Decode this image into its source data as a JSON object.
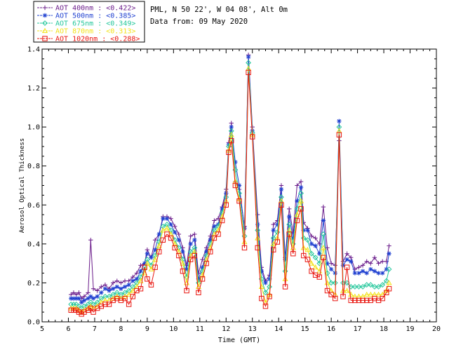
{
  "header": {
    "location": "PML, N 50 22', W 04 08', Alt 0m",
    "date": "Data from: 09 May 2020"
  },
  "chart_data": {
    "type": "line",
    "xlabel": "Time (GMT)",
    "ylabel": "Aerosol Optical Thickness",
    "xlim": [
      5,
      20
    ],
    "ylim": [
      0.0,
      1.4
    ],
    "xticks": [
      "5",
      "6",
      "7",
      "8",
      "9",
      "10",
      "11",
      "12",
      "13",
      "14",
      "15",
      "16",
      "17",
      "18",
      "19",
      "20"
    ],
    "yticks": [
      "0.0",
      "0.2",
      "0.4",
      "0.6",
      "0.8",
      "1.0",
      "1.2",
      "1.4"
    ],
    "legend_position": "top-left",
    "x": [
      6.1,
      6.2,
      6.3,
      6.4,
      6.5,
      6.6,
      6.75,
      6.85,
      6.95,
      7.1,
      7.25,
      7.4,
      7.55,
      7.7,
      7.85,
      8.0,
      8.15,
      8.3,
      8.45,
      8.6,
      8.75,
      8.9,
      9.0,
      9.15,
      9.3,
      9.45,
      9.6,
      9.75,
      9.9,
      10.05,
      10.2,
      10.35,
      10.5,
      10.65,
      10.8,
      10.95,
      11.1,
      11.25,
      11.4,
      11.55,
      11.7,
      11.85,
      12.0,
      12.1,
      12.2,
      12.35,
      12.5,
      12.7,
      12.85,
      13.0,
      13.2,
      13.35,
      13.5,
      13.65,
      13.8,
      13.95,
      14.1,
      14.25,
      14.4,
      14.55,
      14.7,
      14.85,
      14.95,
      15.1,
      15.25,
      15.4,
      15.55,
      15.7,
      15.85,
      16.0,
      16.15,
      16.3,
      16.45,
      16.6,
      16.75,
      16.9,
      17.05,
      17.2,
      17.35,
      17.5,
      17.65,
      17.8,
      17.95,
      18.1,
      18.2
    ],
    "series": [
      {
        "name": "AOT  400nm : <0.422>",
        "color": "#6a1b8a",
        "marker": "plus",
        "values": [
          0.14,
          0.15,
          0.14,
          0.15,
          0.12,
          0.13,
          0.15,
          0.42,
          0.17,
          0.16,
          0.18,
          0.19,
          0.17,
          0.2,
          0.21,
          0.2,
          0.21,
          0.21,
          0.23,
          0.25,
          0.29,
          0.3,
          0.37,
          0.33,
          0.42,
          0.45,
          0.54,
          0.54,
          0.53,
          0.49,
          0.45,
          0.38,
          0.29,
          0.44,
          0.45,
          0.25,
          0.32,
          0.38,
          0.44,
          0.52,
          0.53,
          0.59,
          0.68,
          0.92,
          1.02,
          0.72,
          0.68,
          0.49,
          1.37,
          1.0,
          0.55,
          0.28,
          0.21,
          0.24,
          0.5,
          0.52,
          0.7,
          0.33,
          0.58,
          0.46,
          0.7,
          0.72,
          0.51,
          0.48,
          0.44,
          0.43,
          0.4,
          0.59,
          0.38,
          0.3,
          0.29,
          0.93,
          0.31,
          0.35,
          0.33,
          0.27,
          0.28,
          0.29,
          0.31,
          0.3,
          0.33,
          0.3,
          0.31,
          0.31,
          0.39
        ]
      },
      {
        "name": "AOT  500nm : <0.385>",
        "color": "#1e3fd0",
        "marker": "star",
        "values": [
          0.12,
          0.12,
          0.12,
          0.12,
          0.1,
          0.11,
          0.12,
          0.13,
          0.12,
          0.13,
          0.15,
          0.17,
          0.16,
          0.17,
          0.18,
          0.17,
          0.18,
          0.19,
          0.21,
          0.22,
          0.26,
          0.3,
          0.35,
          0.33,
          0.37,
          0.45,
          0.53,
          0.53,
          0.5,
          0.46,
          0.42,
          0.36,
          0.27,
          0.4,
          0.42,
          0.22,
          0.28,
          0.36,
          0.42,
          0.49,
          0.5,
          0.58,
          0.66,
          0.91,
          1.0,
          0.82,
          0.7,
          0.48,
          1.36,
          0.98,
          0.5,
          0.26,
          0.2,
          0.22,
          0.47,
          0.5,
          0.68,
          0.32,
          0.54,
          0.43,
          0.62,
          0.69,
          0.47,
          0.47,
          0.4,
          0.39,
          0.35,
          0.52,
          0.3,
          0.27,
          0.25,
          1.03,
          0.29,
          0.32,
          0.31,
          0.25,
          0.25,
          0.26,
          0.25,
          0.27,
          0.26,
          0.25,
          0.25,
          0.27,
          0.35
        ]
      },
      {
        "name": "AOT  675nm : <0.349>",
        "color": "#23c79b",
        "marker": "diamond",
        "values": [
          0.09,
          0.09,
          0.09,
          0.08,
          0.07,
          0.08,
          0.09,
          0.1,
          0.09,
          0.1,
          0.12,
          0.13,
          0.13,
          0.14,
          0.15,
          0.14,
          0.15,
          0.16,
          0.18,
          0.2,
          0.23,
          0.27,
          0.32,
          0.29,
          0.34,
          0.41,
          0.49,
          0.5,
          0.47,
          0.42,
          0.38,
          0.32,
          0.23,
          0.36,
          0.38,
          0.2,
          0.26,
          0.34,
          0.4,
          0.47,
          0.49,
          0.56,
          0.64,
          0.9,
          0.98,
          0.78,
          0.66,
          0.44,
          1.33,
          0.97,
          0.47,
          0.22,
          0.15,
          0.18,
          0.43,
          0.46,
          0.64,
          0.26,
          0.5,
          0.4,
          0.58,
          0.66,
          0.43,
          0.42,
          0.35,
          0.33,
          0.3,
          0.45,
          0.25,
          0.2,
          0.2,
          1.0,
          0.2,
          0.2,
          0.18,
          0.18,
          0.18,
          0.18,
          0.19,
          0.19,
          0.18,
          0.18,
          0.19,
          0.21,
          0.27
        ]
      },
      {
        "name": "AOT  870nm : <0.313>",
        "color": "#f3e21b",
        "marker": "triangle",
        "values": [
          0.07,
          0.07,
          0.07,
          0.06,
          0.05,
          0.06,
          0.07,
          0.08,
          0.07,
          0.08,
          0.1,
          0.11,
          0.11,
          0.12,
          0.13,
          0.12,
          0.13,
          0.14,
          0.16,
          0.18,
          0.21,
          0.25,
          0.3,
          0.27,
          0.32,
          0.39,
          0.47,
          0.48,
          0.45,
          0.4,
          0.36,
          0.3,
          0.2,
          0.34,
          0.36,
          0.18,
          0.24,
          0.32,
          0.38,
          0.45,
          0.47,
          0.54,
          0.62,
          0.88,
          0.96,
          0.72,
          0.63,
          0.41,
          1.3,
          0.96,
          0.43,
          0.18,
          0.1,
          0.14,
          0.4,
          0.43,
          0.62,
          0.22,
          0.47,
          0.38,
          0.55,
          0.62,
          0.38,
          0.37,
          0.3,
          0.28,
          0.26,
          0.38,
          0.2,
          0.16,
          0.14,
          0.98,
          0.16,
          0.16,
          0.14,
          0.13,
          0.13,
          0.13,
          0.14,
          0.14,
          0.14,
          0.14,
          0.14,
          0.16,
          0.2
        ]
      },
      {
        "name": "AOT 1020nm : <0.288>",
        "color": "#e8140e",
        "marker": "square",
        "values": [
          0.06,
          0.06,
          0.06,
          0.05,
          0.04,
          0.05,
          0.06,
          0.07,
          0.05,
          0.07,
          0.08,
          0.09,
          0.09,
          0.11,
          0.12,
          0.11,
          0.12,
          0.09,
          0.13,
          0.16,
          0.17,
          0.28,
          0.22,
          0.19,
          0.28,
          0.36,
          0.42,
          0.45,
          0.43,
          0.38,
          0.34,
          0.26,
          0.16,
          0.32,
          0.34,
          0.15,
          0.22,
          0.3,
          0.36,
          0.43,
          0.45,
          0.52,
          0.6,
          0.87,
          0.93,
          0.7,
          0.62,
          0.38,
          1.28,
          0.95,
          0.38,
          0.12,
          0.08,
          0.13,
          0.37,
          0.41,
          0.6,
          0.18,
          0.45,
          0.35,
          0.52,
          0.58,
          0.34,
          0.32,
          0.26,
          0.24,
          0.23,
          0.33,
          0.16,
          0.14,
          0.12,
          0.96,
          0.13,
          0.28,
          0.11,
          0.11,
          0.11,
          0.11,
          0.11,
          0.11,
          0.12,
          0.11,
          0.12,
          0.15,
          0.17
        ]
      }
    ]
  }
}
